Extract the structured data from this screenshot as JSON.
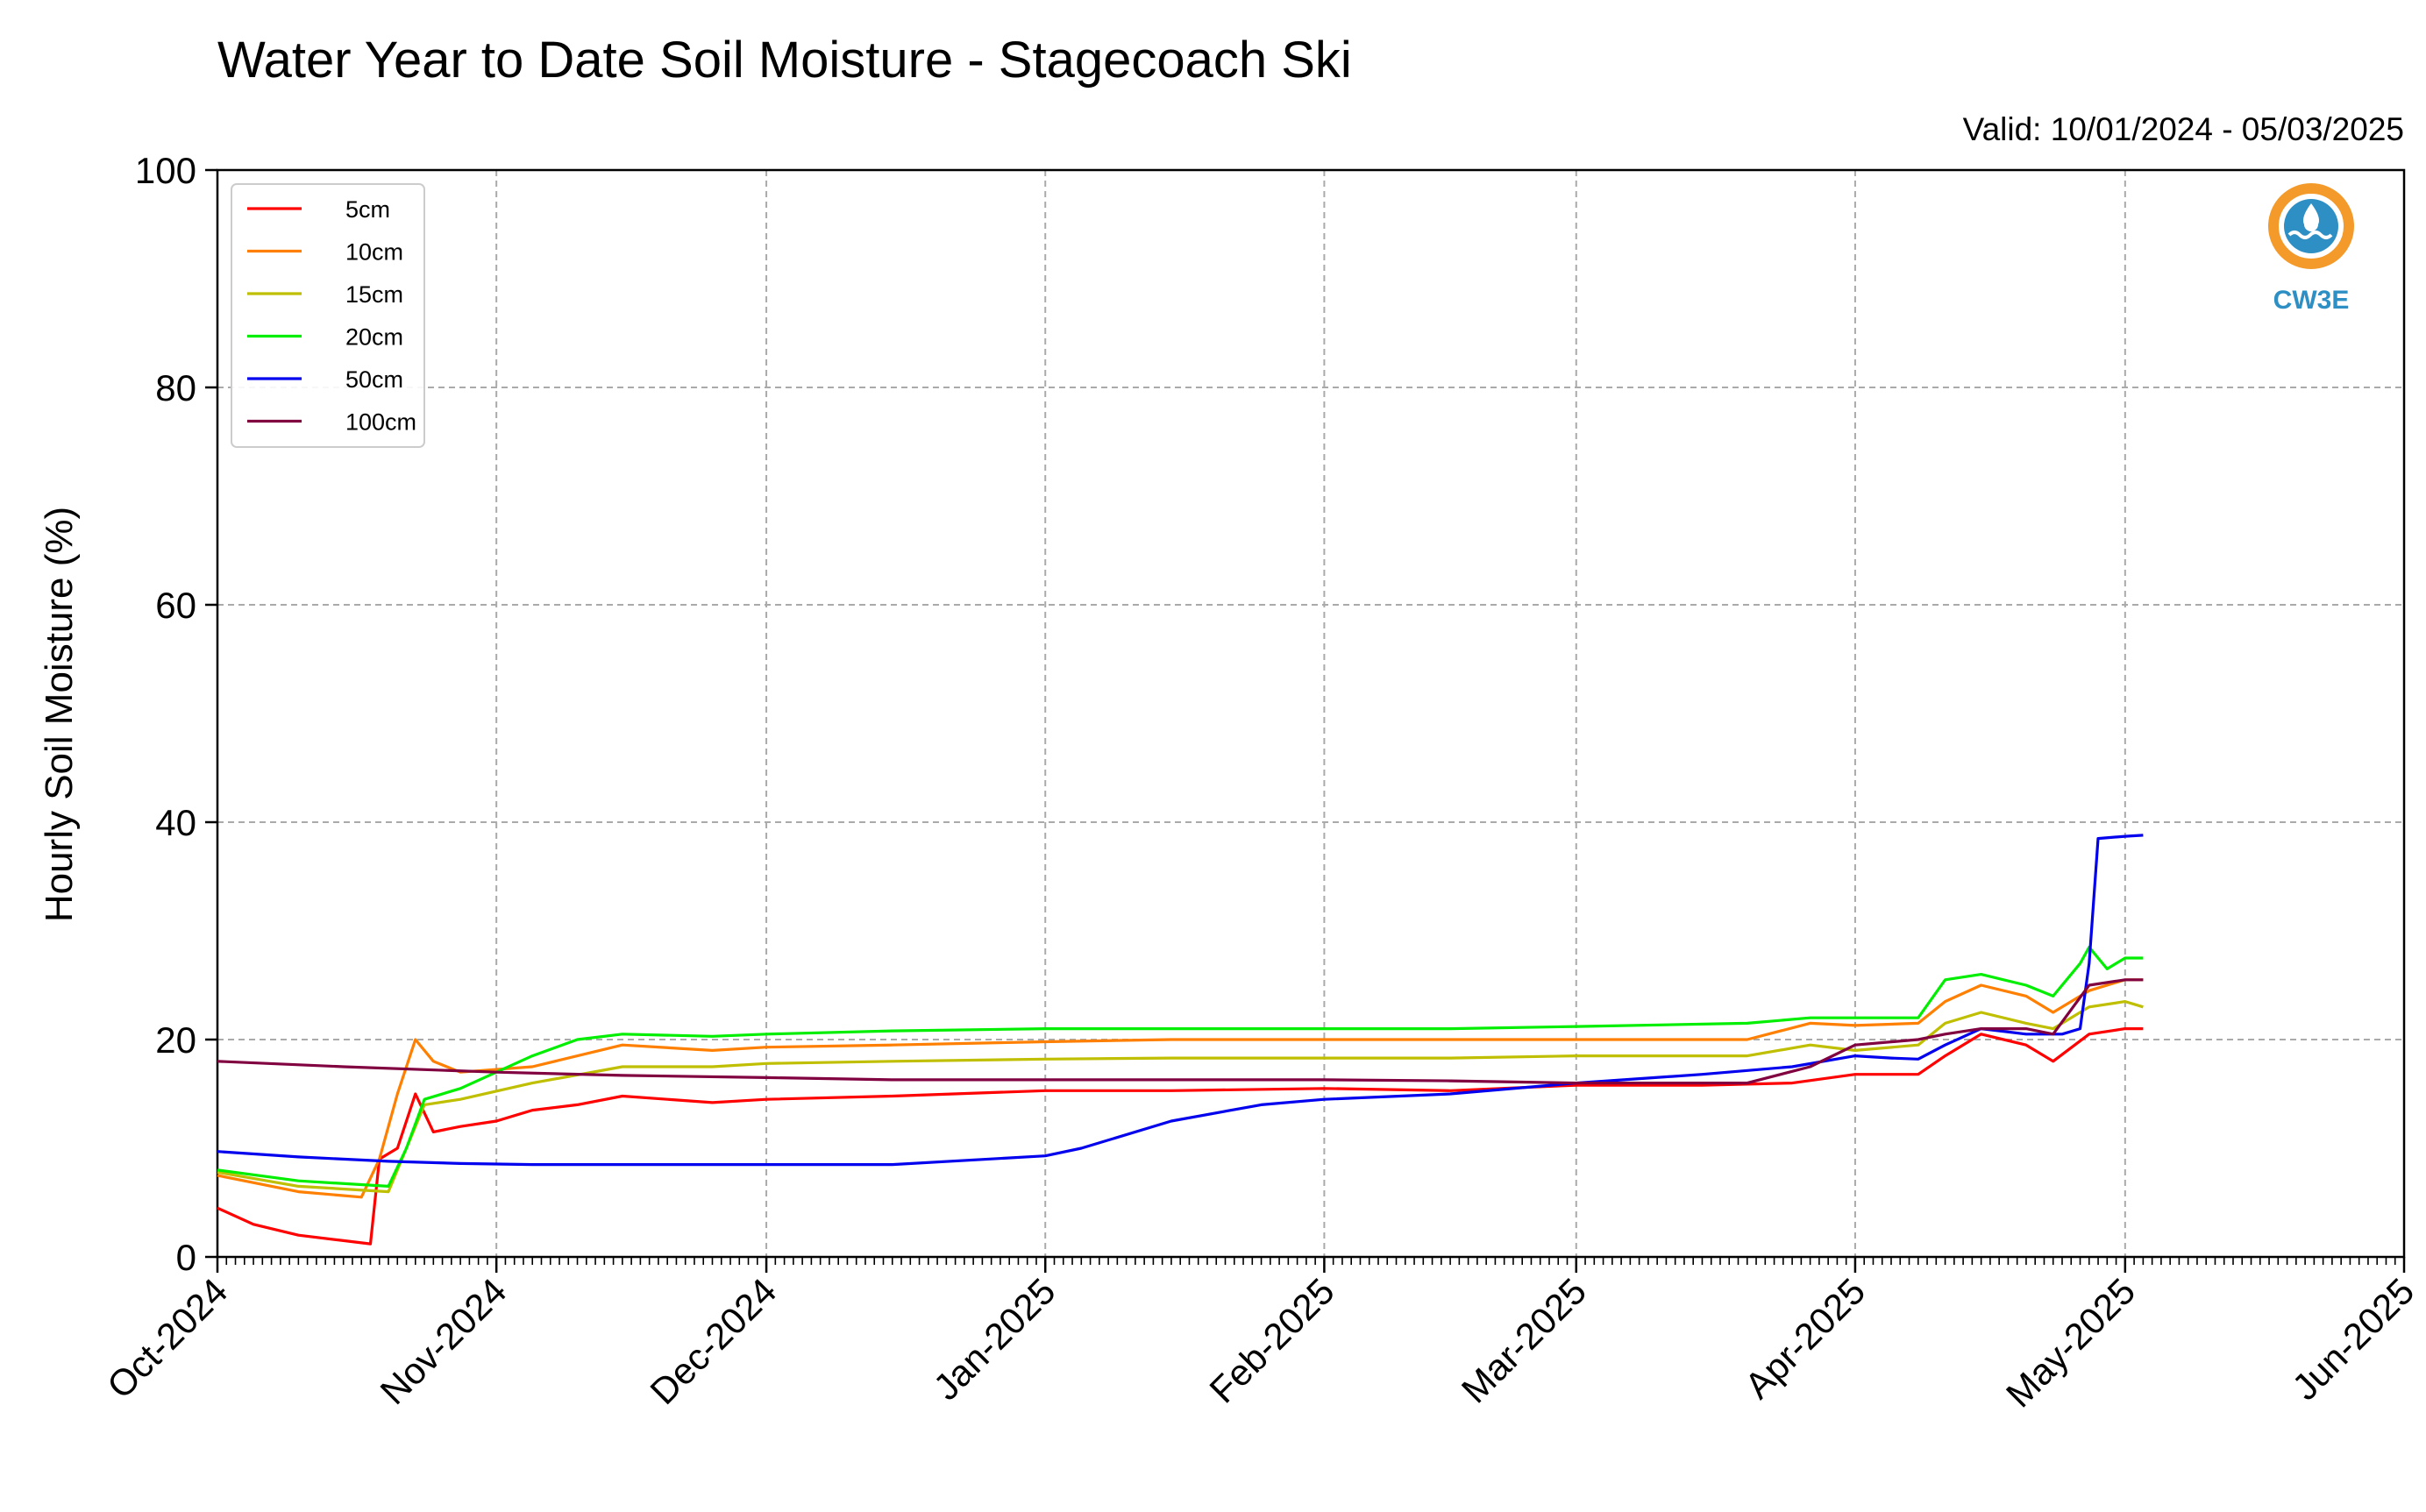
{
  "chart_data": {
    "type": "line",
    "title": "Water Year to Date Soil Moisture - Stagecoach Ski",
    "subtitle": "Valid: 10/01/2024 - 05/03/2025",
    "ylabel": "Hourly Soil Moisture (%)",
    "xlabel": "",
    "ylim": [
      0,
      100
    ],
    "yticks": [
      0,
      20,
      40,
      60,
      80,
      100
    ],
    "xlim": [
      "2024-10-01",
      "2025-06-01"
    ],
    "xticks": [
      {
        "date": "2024-10-01",
        "label": "Oct-2024"
      },
      {
        "date": "2024-11-01",
        "label": "Nov-2024"
      },
      {
        "date": "2024-12-01",
        "label": "Dec-2024"
      },
      {
        "date": "2025-01-01",
        "label": "Jan-2025"
      },
      {
        "date": "2025-02-01",
        "label": "Feb-2025"
      },
      {
        "date": "2025-03-01",
        "label": "Mar-2025"
      },
      {
        "date": "2025-04-01",
        "label": "Apr-2025"
      },
      {
        "date": "2025-05-01",
        "label": "May-2025"
      },
      {
        "date": "2025-06-01",
        "label": "Jun-2025"
      }
    ],
    "grid": true,
    "legend_position": "top-left",
    "series": [
      {
        "name": "5cm",
        "color": "#ff0000",
        "x": [
          "2024-10-01",
          "2024-10-05",
          "2024-10-10",
          "2024-10-15",
          "2024-10-18",
          "2024-10-19",
          "2024-10-21",
          "2024-10-23",
          "2024-10-25",
          "2024-10-28",
          "2024-11-01",
          "2024-11-05",
          "2024-11-10",
          "2024-11-15",
          "2024-11-20",
          "2024-11-25",
          "2024-12-01",
          "2024-12-15",
          "2025-01-01",
          "2025-01-15",
          "2025-02-01",
          "2025-02-15",
          "2025-03-01",
          "2025-03-15",
          "2025-03-25",
          "2025-04-01",
          "2025-04-08",
          "2025-04-11",
          "2025-04-15",
          "2025-04-20",
          "2025-04-23",
          "2025-04-27",
          "2025-05-01",
          "2025-05-03"
        ],
        "values": [
          4.5,
          3.0,
          2.0,
          1.5,
          1.2,
          9.0,
          10.0,
          15.0,
          11.5,
          12.0,
          12.5,
          13.5,
          14.0,
          14.8,
          14.5,
          14.2,
          14.5,
          14.8,
          15.3,
          15.3,
          15.5,
          15.3,
          15.8,
          15.8,
          16.0,
          16.8,
          16.8,
          18.5,
          20.5,
          19.5,
          18.0,
          20.5,
          21.0,
          21.0
        ]
      },
      {
        "name": "10cm",
        "color": "#ff7f00",
        "x": [
          "2024-10-01",
          "2024-10-10",
          "2024-10-17",
          "2024-10-19",
          "2024-10-21",
          "2024-10-23",
          "2024-10-25",
          "2024-10-28",
          "2024-11-05",
          "2024-11-15",
          "2024-11-25",
          "2024-12-01",
          "2024-12-15",
          "2025-01-01",
          "2025-01-15",
          "2025-02-01",
          "2025-02-15",
          "2025-03-01",
          "2025-03-20",
          "2025-03-27",
          "2025-04-01",
          "2025-04-08",
          "2025-04-11",
          "2025-04-15",
          "2025-04-20",
          "2025-04-23",
          "2025-04-27",
          "2025-05-01",
          "2025-05-03"
        ],
        "values": [
          7.5,
          6.0,
          5.5,
          9.0,
          15.0,
          20.0,
          18.0,
          17.0,
          17.5,
          19.5,
          19.0,
          19.3,
          19.5,
          19.8,
          20.0,
          20.0,
          20.0,
          20.0,
          20.0,
          21.5,
          21.3,
          21.5,
          23.5,
          25.0,
          24.0,
          22.5,
          24.5,
          25.5,
          25.5
        ]
      },
      {
        "name": "15cm",
        "color": "#bfbf00",
        "x": [
          "2024-10-01",
          "2024-10-10",
          "2024-10-20",
          "2024-10-22",
          "2024-10-24",
          "2024-10-28",
          "2024-11-05",
          "2024-11-15",
          "2024-11-25",
          "2024-12-01",
          "2024-12-15",
          "2025-01-01",
          "2025-01-15",
          "2025-02-01",
          "2025-02-15",
          "2025-03-01",
          "2025-03-20",
          "2025-03-27",
          "2025-04-01",
          "2025-04-08",
          "2025-04-11",
          "2025-04-15",
          "2025-04-20",
          "2025-04-23",
          "2025-04-27",
          "2025-05-01",
          "2025-05-03"
        ],
        "values": [
          7.8,
          6.5,
          6.0,
          10.0,
          14.0,
          14.5,
          16.0,
          17.5,
          17.5,
          17.8,
          18.0,
          18.2,
          18.3,
          18.3,
          18.3,
          18.5,
          18.5,
          19.5,
          19.0,
          19.5,
          21.5,
          22.5,
          21.5,
          21.0,
          23.0,
          23.5,
          23.0
        ]
      },
      {
        "name": "20cm",
        "color": "#00ee00",
        "x": [
          "2024-10-01",
          "2024-10-10",
          "2024-10-20",
          "2024-10-22",
          "2024-10-24",
          "2024-10-28",
          "2024-11-01",
          "2024-11-05",
          "2024-11-10",
          "2024-11-15",
          "2024-11-25",
          "2024-12-01",
          "2024-12-15",
          "2025-01-01",
          "2025-01-15",
          "2025-02-01",
          "2025-02-15",
          "2025-03-01",
          "2025-03-20",
          "2025-03-27",
          "2025-04-01",
          "2025-04-08",
          "2025-04-11",
          "2025-04-15",
          "2025-04-20",
          "2025-04-23",
          "2025-04-26",
          "2025-04-27",
          "2025-04-29",
          "2025-05-01",
          "2025-05-03"
        ],
        "values": [
          8.0,
          7.0,
          6.5,
          10.0,
          14.5,
          15.5,
          17.0,
          18.5,
          20.0,
          20.5,
          20.3,
          20.5,
          20.8,
          21.0,
          21.0,
          21.0,
          21.0,
          21.2,
          21.5,
          22.0,
          22.0,
          22.0,
          25.5,
          26.0,
          25.0,
          24.0,
          27.0,
          28.5,
          26.5,
          27.5,
          27.5
        ]
      },
      {
        "name": "50cm",
        "color": "#0000ee",
        "x": [
          "2024-10-01",
          "2024-10-10",
          "2024-10-20",
          "2024-10-28",
          "2024-11-05",
          "2024-11-15",
          "2024-12-01",
          "2024-12-15",
          "2025-01-01",
          "2025-01-05",
          "2025-01-15",
          "2025-01-25",
          "2025-02-01",
          "2025-02-15",
          "2025-03-01",
          "2025-03-15",
          "2025-03-25",
          "2025-04-01",
          "2025-04-05",
          "2025-04-08",
          "2025-04-11",
          "2025-04-15",
          "2025-04-20",
          "2025-04-24",
          "2025-04-26",
          "2025-04-27",
          "2025-04-28",
          "2025-05-01",
          "2025-05-03"
        ],
        "values": [
          9.7,
          9.2,
          8.8,
          8.6,
          8.5,
          8.5,
          8.5,
          8.5,
          9.3,
          10.0,
          12.5,
          14.0,
          14.5,
          15.0,
          16.0,
          16.8,
          17.5,
          18.5,
          18.3,
          18.2,
          19.5,
          21.0,
          20.5,
          20.5,
          21.0,
          27.0,
          38.5,
          38.7,
          38.8
        ]
      },
      {
        "name": "100cm",
        "color": "#800040",
        "x": [
          "2024-10-01",
          "2024-10-15",
          "2024-11-01",
          "2024-11-15",
          "2024-12-01",
          "2024-12-15",
          "2025-01-01",
          "2025-01-15",
          "2025-02-01",
          "2025-02-15",
          "2025-03-01",
          "2025-03-20",
          "2025-03-27",
          "2025-04-01",
          "2025-04-08",
          "2025-04-11",
          "2025-04-15",
          "2025-04-20",
          "2025-04-23",
          "2025-04-27",
          "2025-05-01",
          "2025-05-03"
        ],
        "values": [
          18.0,
          17.5,
          17.0,
          16.7,
          16.5,
          16.3,
          16.3,
          16.3,
          16.3,
          16.2,
          16.0,
          16.0,
          17.5,
          19.5,
          20.0,
          20.5,
          21.0,
          21.0,
          20.5,
          25.0,
          25.5,
          25.5
        ]
      }
    ]
  },
  "logo": {
    "text": "CW3E",
    "color": "#2e8fc4",
    "ring_color": "#f39a2a"
  }
}
